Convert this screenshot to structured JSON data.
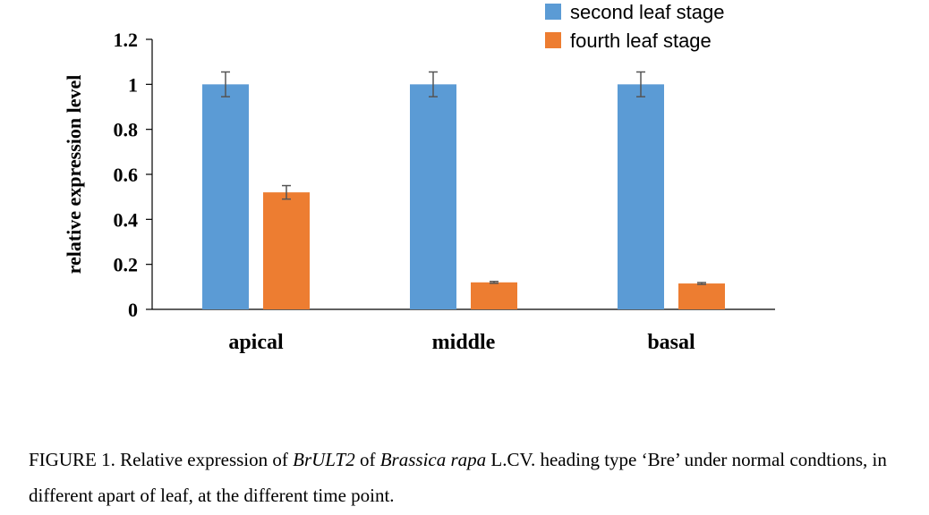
{
  "chart_data": {
    "type": "bar",
    "categories": [
      "apical",
      "middle",
      "basal"
    ],
    "series": [
      {
        "name": "second leaf stage",
        "color": "#5B9BD5",
        "values": [
          1,
          1,
          1
        ],
        "errors": [
          0.055,
          0.055,
          0.055
        ]
      },
      {
        "name": "fourth leaf stage",
        "color": "#ED7D31",
        "values": [
          0.52,
          0.12,
          0.115
        ],
        "errors": [
          0.03,
          0.004,
          0.004
        ]
      }
    ],
    "title": "",
    "xlabel": "",
    "ylabel": "relative expression level",
    "ylim": [
      0,
      1.2
    ],
    "yticks": [
      "0",
      "0.2",
      "0.4",
      "0.6",
      "0.8",
      "1",
      "1.2"
    ],
    "grid": false,
    "legend": "top-right"
  },
  "caption": {
    "prefix": "FIGURE 1. Relative expression of ",
    "gene": "BrULT2",
    "mid1": " of ",
    "species": "Brassica rapa",
    "rest": " L.CV. heading type ‘Bre’ under normal condtions, in different apart of leaf, at the different time point."
  }
}
